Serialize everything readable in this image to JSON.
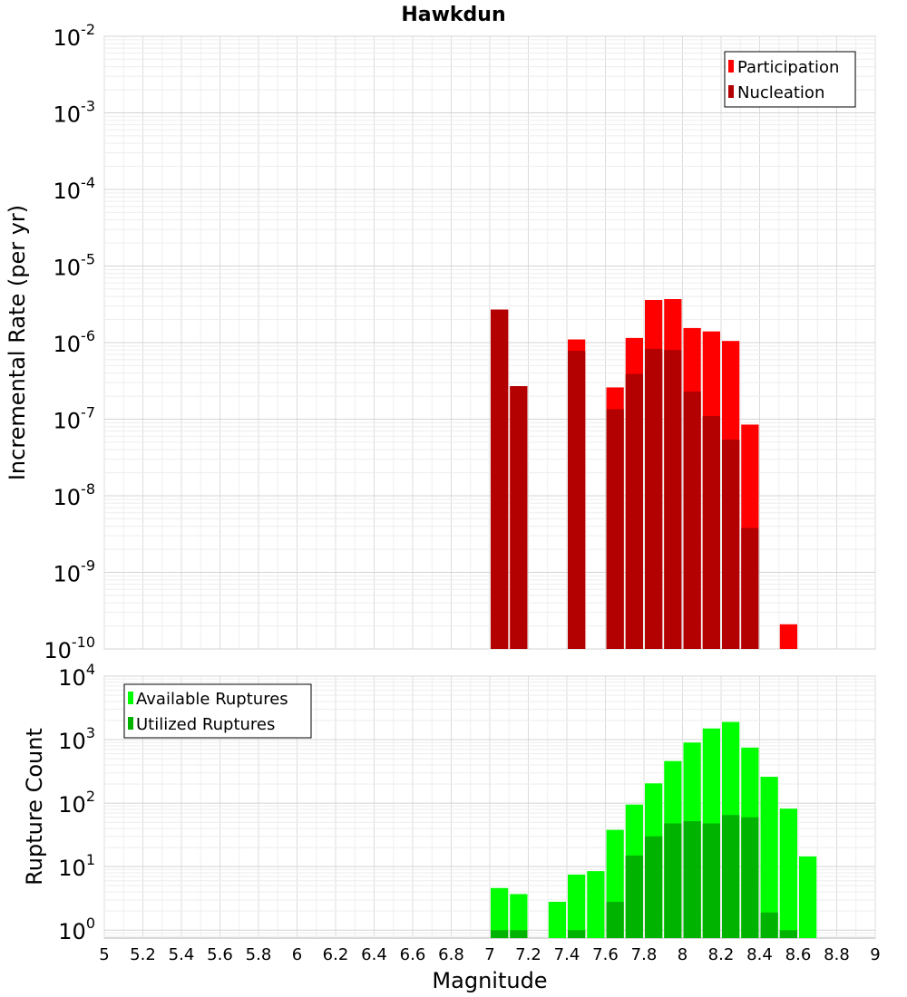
{
  "title": "Hawkdun",
  "x_axis": {
    "label": "Magnitude",
    "ticks": [
      "5",
      "5.2",
      "5.4",
      "5.6",
      "5.8",
      "6",
      "6.2",
      "6.4",
      "6.6",
      "6.8",
      "7",
      "7.2",
      "7.4",
      "7.6",
      "7.8",
      "8",
      "8.2",
      "8.4",
      "8.6",
      "8.8",
      "9"
    ]
  },
  "colors": {
    "participation": "#ff0000",
    "nucleation": "#b30000",
    "available": "#00ff00",
    "utilized": "#00b300"
  },
  "chart_data": [
    {
      "type": "bar",
      "title": "Hawkdun",
      "xlabel": "Magnitude",
      "ylabel": "Incremental Rate (per yr)",
      "xlim": [
        5,
        9
      ],
      "ylim": [
        1e-10,
        0.01
      ],
      "yscale": "log",
      "y_tick_exponents": [
        "-2",
        "-3",
        "-4",
        "-5",
        "-6",
        "-7",
        "-8",
        "-9",
        "-10"
      ],
      "grid": true,
      "legend_position": "top-right",
      "x": [
        7.05,
        7.15,
        7.45,
        7.65,
        7.75,
        7.85,
        7.95,
        8.05,
        8.15,
        8.25,
        8.35,
        8.55
      ],
      "series": [
        {
          "name": "Participation",
          "color": "#ff0000",
          "values": [
            2.7e-06,
            2.7e-07,
            1.1e-06,
            2.6e-07,
            1.15e-06,
            3.6e-06,
            3.7e-06,
            1.55e-06,
            1.4e-06,
            1.05e-06,
            8.5e-08,
            2.1e-10
          ]
        },
        {
          "name": "Nucleation",
          "color": "#b30000",
          "values": [
            2.7e-06,
            2.7e-07,
            7.8e-07,
            1.35e-07,
            3.9e-07,
            8.3e-07,
            8e-07,
            2.3e-07,
            1.1e-07,
            5.4e-08,
            3.8e-09,
            null
          ]
        }
      ]
    },
    {
      "type": "bar",
      "xlabel": "Magnitude",
      "ylabel": "Rupture Count",
      "xlim": [
        5,
        9
      ],
      "ylim": [
        0.75,
        10000
      ],
      "yscale": "log",
      "y_tick_exponents": [
        "4",
        "3",
        "2",
        "1",
        "0"
      ],
      "grid": true,
      "legend_position": "top-left",
      "x": [
        7.05,
        7.15,
        7.35,
        7.45,
        7.55,
        7.65,
        7.75,
        7.85,
        7.95,
        8.05,
        8.15,
        8.25,
        8.35,
        8.45,
        8.55,
        8.65
      ],
      "series": [
        {
          "name": "Available Ruptures",
          "color": "#00ff00",
          "values": [
            4.6,
            3.7,
            2.8,
            7.5,
            8.5,
            38,
            95,
            205,
            460,
            900,
            1500,
            1900,
            750,
            260,
            82,
            14.5
          ]
        },
        {
          "name": "Utilized Ruptures",
          "color": "#00b300",
          "values": [
            1,
            1,
            null,
            1,
            null,
            2.8,
            15,
            30,
            48,
            52,
            48,
            65,
            60,
            1.9,
            1,
            null
          ]
        }
      ]
    }
  ]
}
